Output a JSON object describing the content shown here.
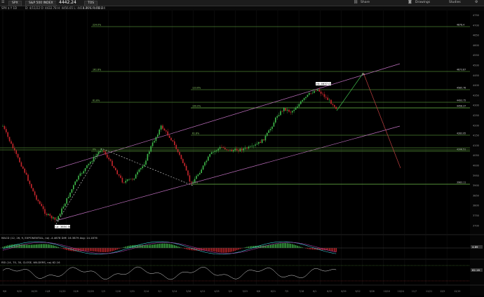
{
  "toolbar": {
    "symbol_tabs": [
      "SPX",
      "S&P 500 INDEX"
    ],
    "last_price": "4442.24",
    "extra_tab": "TOS",
    "right_buttons": [
      "Share",
      "Drawings",
      "Studies"
    ],
    "icons": [
      "menu-icon",
      "link-icon",
      "settings-icon",
      "camera-icon",
      "gear-icon"
    ]
  },
  "info_bar": {
    "symbol_label": "SPX $ Y 1D",
    "quote_text": "D: 4/11/22   O: 4432.78   H: 4456.65   L: 4418.86   C: 4442.24",
    "right_text": "1.76% R: 78.0"
  },
  "price_axis_labels": [
    "4750",
    "4700",
    "4650",
    "4600",
    "4550",
    "4500",
    "4450",
    "4400",
    "4350",
    "4300",
    "4250",
    "4200",
    "4150",
    "4100",
    "4050",
    "4000",
    "3950",
    "3900",
    "3850",
    "3800",
    "3750",
    "3700"
  ],
  "fib_levels": [
    {
      "pct": "224.0%",
      "price": "4878.4"
    },
    {
      "pct": "161.8%",
      "price": "4673.87"
    },
    {
      "pct": "123.6%",
      "price": "4585.76"
    },
    {
      "pct": "61.8%",
      "price": "4493.75"
    },
    {
      "pct": "100.0%",
      "price": "4456.37"
    },
    {
      "pct": "61.8%",
      "price": "4283.95"
    },
    {
      "pct": "0%",
      "price": "4206.51"
    },
    {
      "pct": "0.0%",
      "price": "3983.11"
    }
  ],
  "swing_labels": {
    "high": "Hi: 4637.07",
    "low": "Lo: 3850.58",
    "target": "Nr"
  },
  "date_axis_labels": [
    "9/6",
    "9/13",
    "9/20",
    "10/18",
    "10/25",
    "11/1",
    "11/8",
    "11/15",
    "11/22",
    "11/29",
    "12/6",
    "12/13",
    "12/20",
    "12/27",
    "1/3",
    "1/10",
    "1/18",
    "1/24",
    "1/31",
    "2/7",
    "2/14",
    "2/22",
    "3/1",
    "3/7",
    "3/14",
    "3/21",
    "3/28",
    "4/4",
    "4/11",
    "4/18",
    "4/25",
    "5/2",
    "5/9",
    "5/16",
    "5/23",
    "5/31",
    "6/6",
    "6/13",
    "6/21",
    "6/27",
    "7/5",
    "7/11",
    "7/18",
    "7/25",
    "8/1",
    "8/8",
    "8/15",
    "8/22",
    "8/29",
    "9/6",
    "9/12",
    "9/19",
    "9/26",
    "10/3",
    "10/10",
    "10/17",
    "10/24",
    "10/31",
    "11/7",
    "11/14",
    "11/21",
    "11/28",
    "12/5",
    "12/12",
    "12/19",
    "12/26"
  ],
  "macd_panel": {
    "title": "MACD (12, 26, 9, EXPONENTIAL, no) -4.4678 Diff: 16.3879 Avg: 14.1876",
    "values_label": "4.89"
  },
  "rsi_panel": {
    "title": "RSI (14, 70, 30, CLOSE, WILDERS, no) 62.16",
    "values_label": "62.16"
  },
  "colors": {
    "up": "#3fb94a",
    "down": "#c8262c",
    "fib": "#6fbf4a",
    "channel": "#c070c0",
    "projection": "#c04040"
  }
}
